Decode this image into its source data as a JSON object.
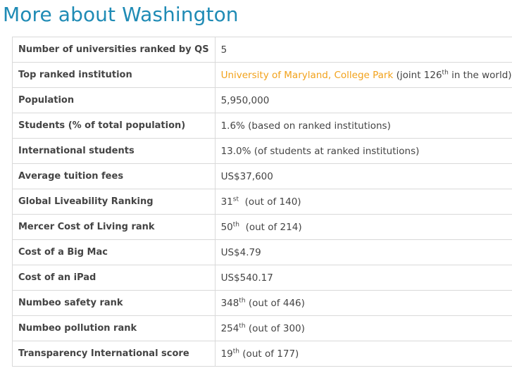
{
  "title": "More about Washington",
  "rows": [
    {
      "label": "Number of universities ranked by QS",
      "value": "5"
    },
    {
      "label": "Top ranked institution",
      "link": "University of Maryland, College Park",
      "pre": " (joint 126",
      "sup": "th",
      "post": " in the world)"
    },
    {
      "label": "Population",
      "value": "5,950,000"
    },
    {
      "label": "Students (% of total population)",
      "value": "1.6% (based on ranked institutions)"
    },
    {
      "label": "International students",
      "value": "13.0% (of students at ranked institutions)"
    },
    {
      "label": "Average tuition fees",
      "value": "US$37,600"
    },
    {
      "label": "Global Liveability Ranking",
      "pre": "31",
      "sup": "st",
      "post": "  (out of 140)"
    },
    {
      "label": "Mercer Cost of Living rank",
      "pre": "50",
      "sup": "th",
      "post": "  (out of 214)"
    },
    {
      "label": "Cost of a Big Mac",
      "value": "US$4.79"
    },
    {
      "label": "Cost of an iPad",
      "value": "US$540.17"
    },
    {
      "label": "Numbeo safety rank",
      "pre": "348",
      "sup": "th",
      "post": " (out of 446)"
    },
    {
      "label": "Numbeo pollution rank",
      "pre": "254",
      "sup": "th",
      "post": " (out of 300)"
    },
    {
      "label": "Transparency International score",
      "pre": "19",
      "sup": "th",
      "post": " (out of 177)"
    }
  ]
}
